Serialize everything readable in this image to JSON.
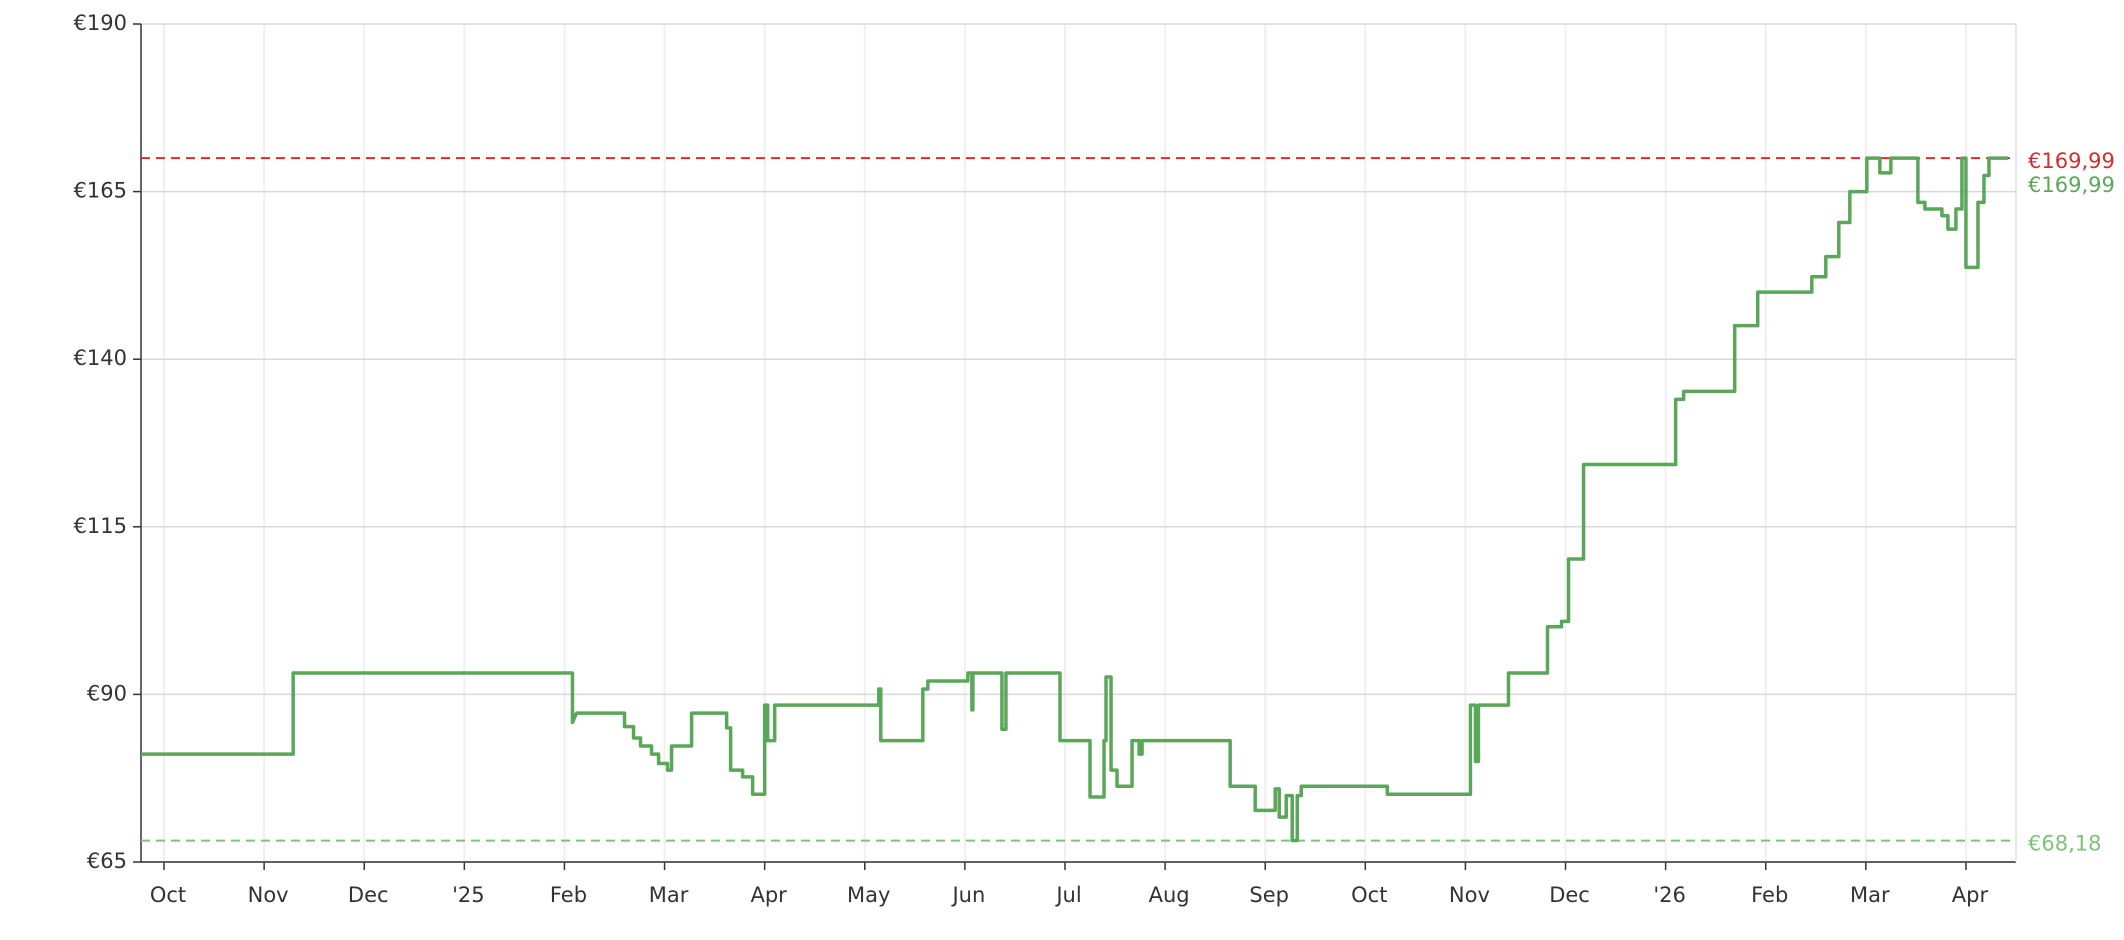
{
  "chart_data": {
    "type": "line",
    "xlim": [
      -0.23,
      18.5
    ],
    "xticks": [
      {
        "value": 0,
        "label": "Oct"
      },
      {
        "value": 1,
        "label": "Nov"
      },
      {
        "value": 2,
        "label": "Dec"
      },
      {
        "value": 3,
        "label": "'25"
      },
      {
        "value": 4,
        "label": "Feb"
      },
      {
        "value": 5,
        "label": "Mar"
      },
      {
        "value": 6,
        "label": "Apr"
      },
      {
        "value": 7,
        "label": "May"
      },
      {
        "value": 8,
        "label": "Jun"
      },
      {
        "value": 9,
        "label": "Jul"
      },
      {
        "value": 10,
        "label": "Aug"
      },
      {
        "value": 11,
        "label": "Sep"
      },
      {
        "value": 12,
        "label": "Oct"
      },
      {
        "value": 13,
        "label": "Nov"
      },
      {
        "value": 14,
        "label": "Dec"
      },
      {
        "value": 15,
        "label": "'26"
      },
      {
        "value": 16,
        "label": "Feb"
      },
      {
        "value": 17,
        "label": "Mar"
      },
      {
        "value": 18,
        "label": "Apr"
      }
    ],
    "ylim": [
      65,
      190
    ],
    "yticks": [
      {
        "value": 65,
        "label": "€65"
      },
      {
        "value": 90,
        "label": "€90"
      },
      {
        "value": 115,
        "label": "€115"
      },
      {
        "value": 140,
        "label": "€140"
      },
      {
        "value": 165,
        "label": "€165"
      },
      {
        "value": 190,
        "label": "€190"
      }
    ],
    "grid": true,
    "ref_lines": [
      {
        "value": 169.99,
        "label": "€169,99",
        "color": "#d32f2f"
      },
      {
        "value": 68.18,
        "label": "€68,18",
        "color": "#7cc47a"
      }
    ],
    "current": {
      "value": 169.99,
      "label": "€169,99",
      "color": "#5aa75a"
    },
    "series": [
      {
        "color": "#5aa75a",
        "x": [
          -0.23,
          1.29,
          1.29,
          4.08,
          4.08,
          4.12,
          4.6,
          4.6,
          4.69,
          4.69,
          4.76,
          4.76,
          4.87,
          4.87,
          4.94,
          4.94,
          5.03,
          5.03,
          5.07,
          5.07,
          5.27,
          5.27,
          5.62,
          5.62,
          5.66,
          5.66,
          5.78,
          5.78,
          5.88,
          5.88,
          6.0,
          6.0,
          6.03,
          6.03,
          6.1,
          6.1,
          7.14,
          7.14,
          7.16,
          7.16,
          7.58,
          7.58,
          7.63,
          7.63,
          8.03,
          8.03,
          8.07,
          8.07,
          8.08,
          8.08,
          8.37,
          8.37,
          8.41,
          8.41,
          8.95,
          8.95,
          9.25,
          9.25,
          9.39,
          9.39,
          9.41,
          9.41,
          9.46,
          9.46,
          9.52,
          9.52,
          9.67,
          9.67,
          9.74,
          9.74,
          9.77,
          9.77,
          10.65,
          10.65,
          10.9,
          10.9,
          11.1,
          11.1,
          11.14,
          11.14,
          11.21,
          11.21,
          11.27,
          11.27,
          11.32,
          11.32,
          11.36,
          11.36,
          12.22,
          12.22,
          13.05,
          13.05,
          13.1,
          13.1,
          13.13,
          13.13,
          13.43,
          13.43,
          13.82,
          13.82,
          13.96,
          13.96,
          14.03,
          14.03,
          14.18,
          14.18,
          15.1,
          15.1,
          15.18,
          15.18,
          15.69,
          15.69,
          15.92,
          15.92,
          16.46,
          16.46,
          16.6,
          16.6,
          16.73,
          16.73,
          16.84,
          16.84,
          17.01,
          17.01,
          17.14,
          17.14,
          17.25,
          17.25,
          17.52,
          17.52,
          17.59,
          17.59,
          17.76,
          17.76,
          17.82,
          17.82,
          17.9,
          17.9,
          17.96,
          17.96,
          18.0,
          18.0,
          18.12,
          18.12,
          18.18,
          18.18,
          18.23,
          18.23,
          18.42
        ],
        "values": [
          81.1,
          81.1,
          93.2,
          93.2,
          85.8,
          87.2,
          87.2,
          85.2,
          85.2,
          83.5,
          83.5,
          82.3,
          82.3,
          81.1,
          81.1,
          79.7,
          79.7,
          78.7,
          78.7,
          82.3,
          82.3,
          87.2,
          87.2,
          85.0,
          85.0,
          78.7,
          78.7,
          77.7,
          77.7,
          75.1,
          75.1,
          88.4,
          88.4,
          83.1,
          83.1,
          88.4,
          88.4,
          90.8,
          90.8,
          83.1,
          83.1,
          90.8,
          90.8,
          92.0,
          92.0,
          93.2,
          93.2,
          87.7,
          87.7,
          93.2,
          93.2,
          84.8,
          84.8,
          93.2,
          93.2,
          83.1,
          83.1,
          74.7,
          74.7,
          83.1,
          83.1,
          92.6,
          92.6,
          78.7,
          78.7,
          76.3,
          76.3,
          83.1,
          83.1,
          81.1,
          81.1,
          83.1,
          83.1,
          76.3,
          76.3,
          72.7,
          72.7,
          75.9,
          75.9,
          71.7,
          71.7,
          74.9,
          74.9,
          68.2,
          68.2,
          74.9,
          74.9,
          76.3,
          76.3,
          75.1,
          75.1,
          88.4,
          88.4,
          80.0,
          80.0,
          88.4,
          88.4,
          93.2,
          93.2,
          100.1,
          100.1,
          100.9,
          100.9,
          110.2,
          110.2,
          124.3,
          124.3,
          134.0,
          134.0,
          135.2,
          135.2,
          145.0,
          145.0,
          150.0,
          150.0,
          152.3,
          152.3,
          155.3,
          155.3,
          160.4,
          160.4,
          165.0,
          165.0,
          169.99,
          169.99,
          167.8,
          167.8,
          169.99,
          169.99,
          163.4,
          163.4,
          162.4,
          162.4,
          161.4,
          161.4,
          159.4,
          159.4,
          162.4,
          162.4,
          169.99,
          169.99,
          153.7,
          153.7,
          163.4,
          163.4,
          167.4,
          167.4,
          169.99,
          169.99
        ]
      }
    ]
  }
}
